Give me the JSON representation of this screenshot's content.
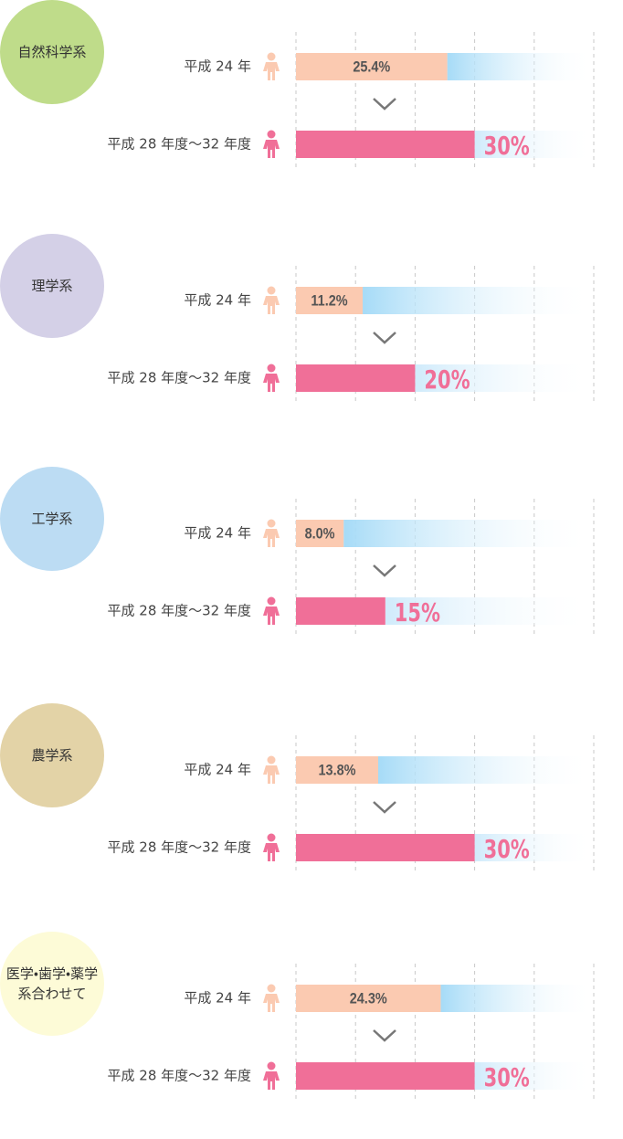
{
  "chart_data": [
    {
      "type": "bar",
      "title": "自然科学系",
      "circle_color": "#bfdc8a",
      "categories": [
        "平成 24 年",
        "平成 28 年度〜32 年度"
      ],
      "values": [
        25.4,
        30
      ],
      "value_labels": [
        "25.4%",
        "30%"
      ],
      "colors": [
        "#fbcab1",
        "#f06f98"
      ],
      "xlim": [
        0,
        50
      ],
      "xticks": [
        0,
        10,
        20,
        30,
        40,
        50
      ],
      "grid": true
    },
    {
      "type": "bar",
      "title": "理学系",
      "circle_color": "#d4d0e7",
      "categories": [
        "平成 24 年",
        "平成 28 年度〜32 年度"
      ],
      "values": [
        11.2,
        20
      ],
      "value_labels": [
        "11.2%",
        "20%"
      ],
      "colors": [
        "#fbcab1",
        "#f06f98"
      ],
      "xlim": [
        0,
        50
      ],
      "xticks": [
        0,
        10,
        20,
        30,
        40,
        50
      ],
      "grid": true
    },
    {
      "type": "bar",
      "title": "工学系",
      "circle_color": "#bcdcf3",
      "categories": [
        "平成 24 年",
        "平成 28 年度〜32 年度"
      ],
      "values": [
        8.0,
        15
      ],
      "value_labels": [
        "8.0%",
        "15%"
      ],
      "colors": [
        "#fbcab1",
        "#f06f98"
      ],
      "xlim": [
        0,
        50
      ],
      "xticks": [
        0,
        10,
        20,
        30,
        40,
        50
      ],
      "grid": true
    },
    {
      "type": "bar",
      "title": "農学系",
      "circle_color": "#e3d3a7",
      "categories": [
        "平成 24 年",
        "平成 28 年度〜32 年度"
      ],
      "values": [
        13.8,
        30
      ],
      "value_labels": [
        "13.8%",
        "30%"
      ],
      "colors": [
        "#fbcab1",
        "#f06f98"
      ],
      "xlim": [
        0,
        50
      ],
      "xticks": [
        0,
        10,
        20,
        30,
        40,
        50
      ],
      "grid": true
    },
    {
      "type": "bar",
      "title": "医学・歯学・薬学系合わせて",
      "circle_color": "#fdfbd7",
      "categories": [
        "平成 24 年",
        "平成 28 年度〜32 年度"
      ],
      "values": [
        24.3,
        30
      ],
      "value_labels": [
        "24.3%",
        "30%"
      ],
      "colors": [
        "#fbcab1",
        "#f06f98"
      ],
      "xlim": [
        0,
        50
      ],
      "xticks": [
        0,
        10,
        20,
        30,
        40,
        50
      ],
      "grid": true
    }
  ]
}
